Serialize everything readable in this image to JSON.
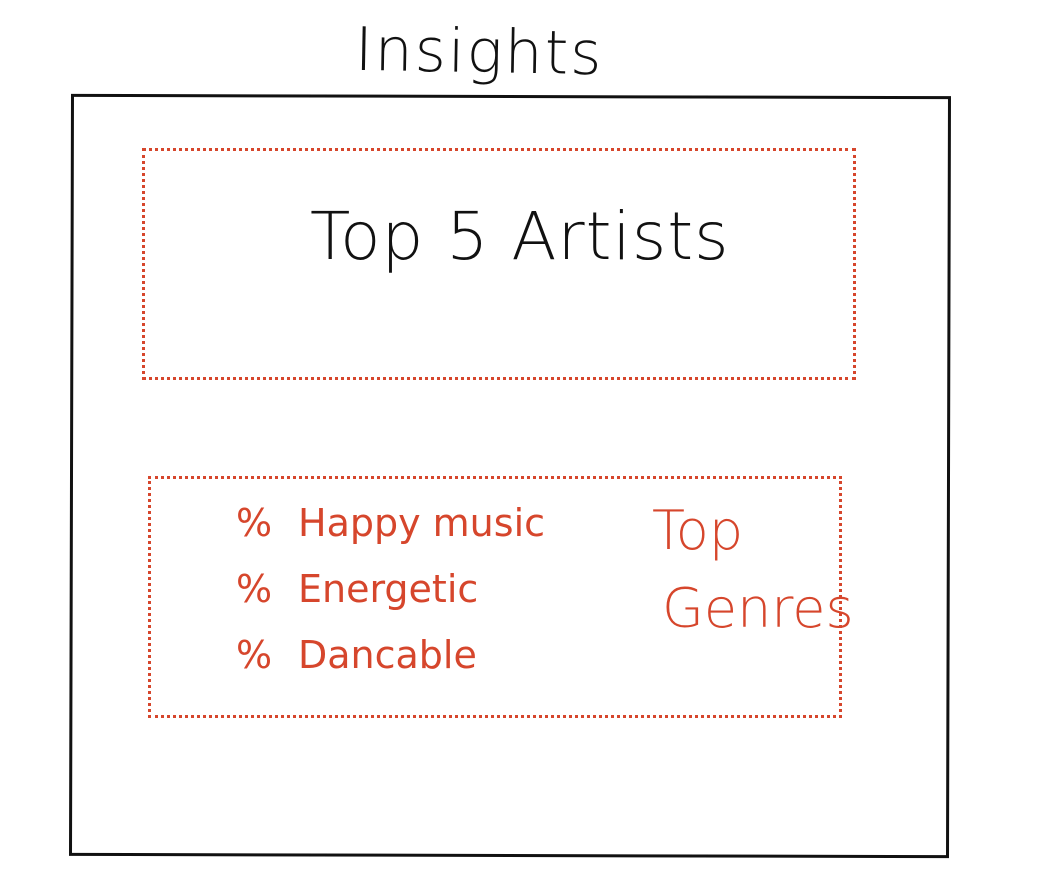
{
  "page": {
    "title": "Insights"
  },
  "artists_panel": {
    "title": "Top 5 Artists"
  },
  "genres_panel": {
    "metrics": [
      {
        "prefix": "%",
        "label": "Happy music"
      },
      {
        "prefix": "%",
        "label": "Energetic"
      },
      {
        "prefix": "%",
        "label": "Dancable"
      }
    ],
    "heading_line1": "Top",
    "heading_line2": "Genres"
  },
  "colors": {
    "ink": "#111111",
    "annotation_red": "#d6462c",
    "background": "#ffffff"
  }
}
